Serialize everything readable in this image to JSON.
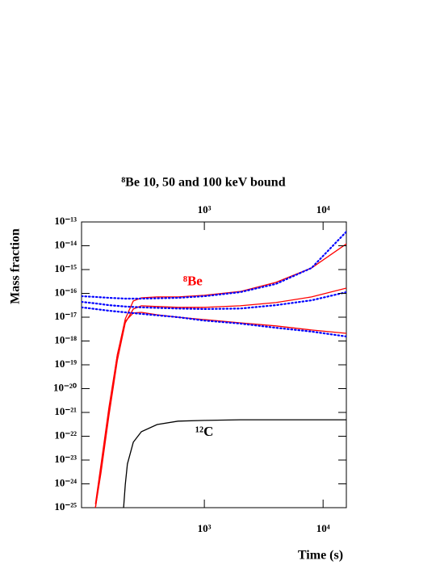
{
  "chart_data": {
    "type": "line",
    "title": "⁸Be 10, 50 and 100 keV bound",
    "x_label": "Time (s)",
    "y_label": "Mass fraction",
    "log_x": true,
    "log_y": true,
    "xlim": [
      92.4,
      15700
    ],
    "ylim": [
      1e-25,
      1e-13
    ],
    "xticks": [
      {
        "value": 1000,
        "label": "10³"
      },
      {
        "value": 10000,
        "label": "10⁴"
      }
    ],
    "yticks": [
      {
        "value": 1e-13,
        "label": "10⁻¹³"
      },
      {
        "value": 1e-14,
        "label": "10⁻¹⁴"
      },
      {
        "value": 1e-15,
        "label": "10⁻¹⁵"
      },
      {
        "value": 1e-16,
        "label": "10⁻¹⁶"
      },
      {
        "value": 1e-17,
        "label": "10⁻¹⁷"
      },
      {
        "value": 1e-18,
        "label": "10⁻¹⁸"
      },
      {
        "value": 1e-19,
        "label": "10⁻¹⁹"
      },
      {
        "value": 1e-20,
        "label": "10⁻²⁰"
      },
      {
        "value": 1e-21,
        "label": "10⁻²¹"
      },
      {
        "value": 1e-22,
        "label": "10⁻²²"
      },
      {
        "value": 1e-23,
        "label": "10⁻²³"
      },
      {
        "value": 1e-24,
        "label": "10⁻²⁴"
      },
      {
        "value": 1e-25,
        "label": "10⁻²⁵"
      }
    ],
    "annotations": [
      {
        "text": "⁸Be",
        "color": "#ff0000",
        "x": 800,
        "y": 3e-16
      },
      {
        "text": "¹²C",
        "color": "#000000",
        "x": 1000,
        "y": 1.4e-22
      }
    ],
    "series": [
      {
        "color": "#ff0000",
        "style": "solid",
        "x": [
          121,
          135,
          157,
          185,
          216,
          252,
          295,
          400,
          600,
          1000,
          2000,
          4000,
          8000,
          15700
        ],
        "values": [
          1e-25,
          4.6e-24,
          1.07e-21,
          2.6e-19,
          8.5e-18,
          4.8e-17,
          6.5e-17,
          7.1e-17,
          7.1e-17,
          8.3e-17,
          1.2e-16,
          2.9e-16,
          1.17e-15,
          1.2e-14
        ]
      },
      {
        "color": "#ff0000",
        "style": "solid",
        "x": [
          121,
          135,
          157,
          185,
          216,
          252,
          295,
          400,
          600,
          1000,
          2000,
          4000,
          8000,
          15700
        ],
        "values": [
          1e-25,
          3.1e-24,
          7.2e-22,
          1.5e-19,
          5.8e-18,
          2.2e-17,
          3e-17,
          2.8e-17,
          2.6e-17,
          2.6e-17,
          3e-17,
          4.1e-17,
          7.1e-17,
          1.66e-16
        ]
      },
      {
        "color": "#ff0000",
        "style": "solid",
        "x": [
          121,
          135,
          157,
          185,
          216,
          252,
          295,
          400,
          600,
          1000,
          2000,
          4000,
          8000,
          15700
        ],
        "values": [
          1.4e-25,
          6.8e-24,
          1.6e-21,
          2.6e-19,
          6.8e-18,
          1.5e-17,
          1.6e-17,
          1.26e-17,
          1e-17,
          7.9e-18,
          5.8e-18,
          4.3e-18,
          2.9e-18,
          2.1e-18
        ]
      },
      {
        "color": "#0000ff",
        "style": "dotted",
        "x": [
          92.4,
          121,
          157,
          216,
          295,
          600,
          1000,
          2000,
          4000,
          8000,
          15700
        ],
        "values": [
          7.6e-17,
          7.1e-17,
          6.5e-17,
          6e-17,
          6e-17,
          6.5e-17,
          7.6e-17,
          1.12e-16,
          2.5e-16,
          1.17e-15,
          3.9e-14
        ]
      },
      {
        "color": "#0000ff",
        "style": "dotted",
        "x": [
          92.4,
          121,
          157,
          216,
          295,
          600,
          1000,
          2000,
          4000,
          8000,
          15700
        ],
        "values": [
          4.4e-17,
          3.8e-17,
          3.2e-17,
          2.8e-17,
          2.6e-17,
          2.3e-17,
          2.2e-17,
          2.3e-17,
          3.2e-17,
          5.1e-17,
          1.12e-16
        ]
      },
      {
        "color": "#0000ff",
        "style": "dotted",
        "x": [
          92.4,
          121,
          157,
          216,
          295,
          600,
          1000,
          2000,
          4000,
          8000,
          15700
        ],
        "values": [
          2.6e-17,
          2.2e-17,
          1.86e-17,
          1.6e-17,
          1.38e-17,
          1e-17,
          7.2e-18,
          5.4e-18,
          3.6e-18,
          2.5e-18,
          1.55e-18
        ]
      },
      {
        "color": "#000000",
        "style": "solid",
        "x": [
          209,
          216,
          225,
          252,
          295,
          400,
          600,
          1000,
          2000,
          4000,
          8000,
          15700
        ],
        "values": [
          1e-25,
          9.5e-25,
          6.8e-24,
          5.6e-23,
          1.55e-22,
          3.1e-22,
          4.3e-22,
          4.6e-22,
          4.9e-22,
          4.9e-22,
          4.9e-22,
          4.9e-22
        ]
      }
    ]
  }
}
